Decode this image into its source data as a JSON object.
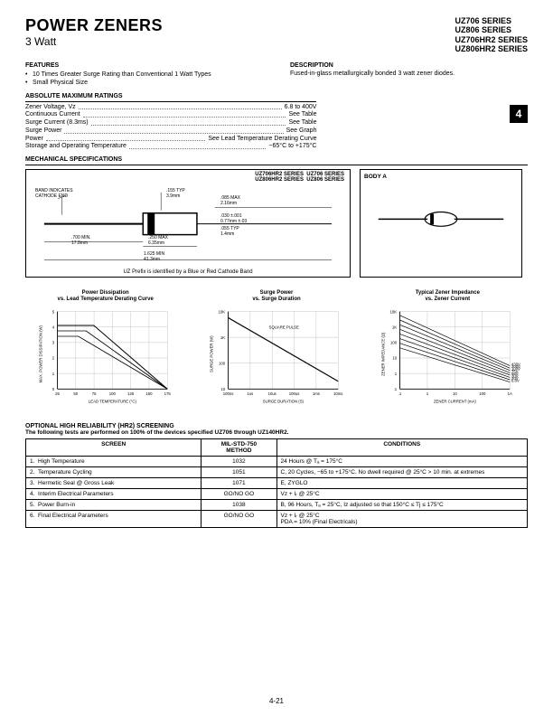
{
  "header": {
    "title": "POWER ZENERS",
    "subtitle": "3 Watt",
    "series": [
      "UZ706 SERIES",
      "UZ806 SERIES",
      "UZ706HR2 SERIES",
      "UZ806HR2 SERIES"
    ],
    "page_badge": "4"
  },
  "features": {
    "heading": "FEATURES",
    "items": [
      "10 Times Greater Surge Rating than Conventional 1 Watt Types",
      "Small Physical Size"
    ]
  },
  "description": {
    "heading": "DESCRIPTION",
    "text": "Fused-in-glass metallurgically bonded 3 watt zener diodes."
  },
  "ratings": {
    "heading": "ABSOLUTE MAXIMUM RATINGS",
    "rows": [
      {
        "label": "Zener Voltage, Vz",
        "value": "6.8 to 400V"
      },
      {
        "label": "Continuous Current",
        "value": "See Table"
      },
      {
        "label": "Surge Current (8.3ms)",
        "value": "See Table"
      },
      {
        "label": "Surge Power",
        "value": "See Graph"
      },
      {
        "label": "Power",
        "value": "See Lead Temperature Derating Curve"
      },
      {
        "label": "Storage and Operating Temperature",
        "value": "−65°C to +175°C"
      }
    ]
  },
  "mechanical": {
    "heading": "MECHANICAL SPECIFICATIONS",
    "series_labels": {
      "hr2": "UZ706HR2 SERIES  UZ706 SERIES\nUZ806HR2 SERIES  UZ806 SERIES"
    },
    "dims": {
      "band_note": "BAND INDICATES\nCATHODE END",
      "d1": ".155 TYP\n3.9mm",
      "d2": ".085 MAX\n2.16mm",
      "d3": ".030 ±.001\n0.77mm ±.03",
      "d4": ".055 TYP\n1.4mm",
      "d5": ".700 MIN.\n17.8mm",
      "d6": ".250 MAX\n6.35mm",
      "d7": "1.625 MIN\n41.3mm",
      "footnote": "UZ Prefix is identified by a Blue or Red Cathode Band"
    },
    "body_a_title": "BODY A"
  },
  "charts": {
    "derating": {
      "title": "Power Dissipation\nvs. Lead Temperature Derating Curve",
      "ylabel": "MAX. POWER DISSIPATION (W)",
      "xlabel": "LEAD TEMPERATURE (°C)",
      "yticks": [
        0,
        1,
        2,
        3,
        4,
        5
      ],
      "xticks": [
        25,
        50,
        75,
        100,
        125,
        150,
        175
      ],
      "note": "L = Lead Length,\n     from Body",
      "curves": [
        "L = 1/8\"",
        "L = 3/8\"",
        "L = 1/2\""
      ],
      "grid_color": "#888",
      "line_color": "#000",
      "bg": "#ffffff"
    },
    "surge": {
      "title": "Surge Power\nvs. Surge Duration",
      "ylabel": "SURGE POWER (W)",
      "xlabel": "SURGE DURATION (S)",
      "yticks": [
        "10",
        "100",
        "1K",
        "10K"
      ],
      "xticks": [
        "100ns",
        "1us",
        "10us",
        "100us",
        "1ms",
        "10ms"
      ],
      "note": "SQUARE PULSE",
      "grid_color": "#888",
      "line_color": "#000"
    },
    "impedance": {
      "title": "Typical Zener Impedance\nvs. Zener Current",
      "ylabel": "ZENER IMPEDANCE (Ω)",
      "xlabel": "ZENER CURRENT (mA)",
      "yticks": [
        ".1",
        "1",
        "10",
        "100",
        "1K",
        "10K"
      ],
      "xticks": [
        ".1",
        "1",
        "10",
        "100",
        "1A"
      ],
      "curve_labels": [
        "430V",
        "200V",
        "100V",
        "75V",
        "56V",
        "30V",
        "20V",
        "6.8V"
      ],
      "grid_color": "#888",
      "line_color": "#000"
    }
  },
  "screening": {
    "heading": "OPTIONAL HIGH RELIABILITY (HR2) SCREENING",
    "sub": "The following tests are performed on 100% of the devices specified UZ706 through UZ140HR2.",
    "columns": [
      "SCREEN",
      "MIL-STD-750\nMETHOD",
      "CONDITIONS"
    ],
    "rows": [
      {
        "n": "1.",
        "screen": "High Temperature",
        "method": "1032",
        "cond": "24 Hours @ Tₐ = 175°C"
      },
      {
        "n": "2.",
        "screen": "Temperature Cycling",
        "method": "1051",
        "cond": "C, 20 Cycles, −65 to +175°C. No dwell required @ 25°C > 10 min. at extremes"
      },
      {
        "n": "3.",
        "screen": "Hermetic Seal @ Gross Leak",
        "method": "1071",
        "cond": "E, ZYGLO"
      },
      {
        "n": "4.",
        "screen": "Interim Electrical Parameters",
        "method": "GO/NO GO",
        "cond": "Vz + Iᵣ @ 25°C"
      },
      {
        "n": "5.",
        "screen": "Power Burn-in",
        "method": "1038",
        "cond": "B, 96 Hours, Tₐ = 25°C, Iz adjusted so that 150°C ≤ Tj ≤ 175°C"
      },
      {
        "n": "6.",
        "screen": "Final Electrical Parameters",
        "method": "GO/NO GO",
        "cond": "Vz + Iᵣ @ 25°C\nPDA = 10% (Final Electricals)"
      }
    ]
  },
  "page_number": "4-21"
}
